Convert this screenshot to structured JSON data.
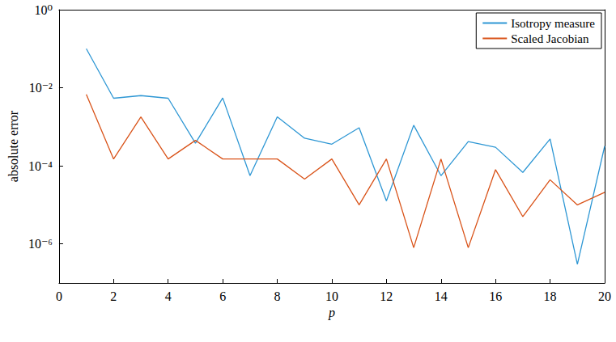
{
  "chart_data": {
    "type": "line",
    "x_label": "p",
    "y_label": "absolute error",
    "x": [
      1,
      2,
      3,
      4,
      5,
      6,
      7,
      8,
      9,
      10,
      11,
      12,
      13,
      14,
      15,
      16,
      17,
      18,
      19,
      20
    ],
    "series": [
      {
        "name": "Isotropy measure",
        "color": "#2e97d4",
        "values": [
          0.1,
          0.0054,
          0.0063,
          0.0054,
          0.00038,
          0.0055,
          5.6e-05,
          0.0018,
          0.00051,
          0.00036,
          0.00095,
          1.26e-05,
          0.0011,
          5.6e-05,
          0.00042,
          0.0003,
          6.8e-05,
          0.00049,
          3e-07,
          0.00032
        ]
      },
      {
        "name": "Scaled Jacobian",
        "color": "#d95319",
        "values": [
          0.0068,
          0.00015,
          0.0018,
          0.00015,
          0.00045,
          0.00015,
          0.00015,
          0.00015,
          4.6e-05,
          0.00015,
          1e-05,
          0.00015,
          8e-07,
          0.00015,
          8e-07,
          8e-05,
          5e-06,
          4.4e-05,
          1e-05,
          2.1e-05
        ]
      }
    ],
    "xlim": [
      0,
      20
    ],
    "xticks": [
      0,
      2,
      4,
      6,
      8,
      10,
      12,
      14,
      16,
      18,
      20
    ],
    "ylim": [
      1e-07,
      1
    ],
    "yticks": [
      {
        "value": 1e-06,
        "label": "10⁻⁶"
      },
      {
        "value": 0.0001,
        "label": "10⁻⁴"
      },
      {
        "value": 0.01,
        "label": "10⁻²"
      },
      {
        "value": 1,
        "label": "10⁰"
      }
    ],
    "log": "y",
    "grid": false,
    "legend": "upper right"
  }
}
